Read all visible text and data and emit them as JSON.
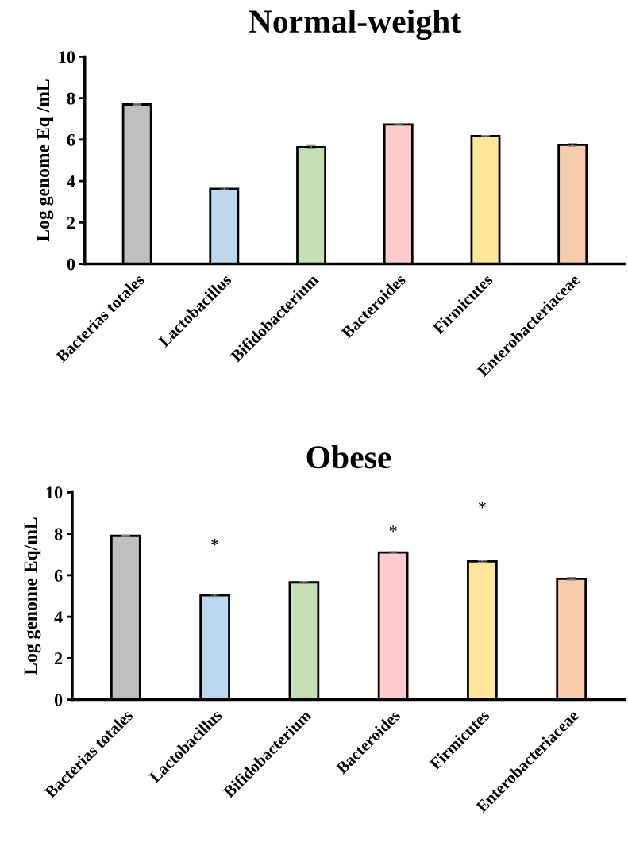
{
  "chart_data": [
    {
      "type": "bar",
      "title": "Normal-weight",
      "ylabel": "Log genome Eq /mL",
      "categories": [
        "Bacterias totales",
        "Lactobacillus",
        "Bifidobacterium",
        "Bacteroides",
        "Firmicutes",
        "Enterobacteriaceae"
      ],
      "values": [
        7.7,
        3.63,
        5.64,
        6.73,
        6.17,
        5.75
      ],
      "errors": [
        0.03,
        0.05,
        0.07,
        0.03,
        0.03,
        0.06
      ],
      "colors": [
        "#bfbfbf",
        "#bdd7ee",
        "#c5e0b4",
        "#ffcccc",
        "#ffe699",
        "#f8cbad"
      ],
      "ylim": [
        0,
        10
      ],
      "yticks": [
        0,
        2,
        4,
        6,
        8,
        10
      ],
      "grid": false
    },
    {
      "type": "bar",
      "title": "Obese",
      "ylabel": "Log genome Eq/mL",
      "categories": [
        "Bacterias totales",
        "Lactobacillus",
        "Bifidobacterium",
        "Bacteroides",
        "Firmicutes",
        "Enterobacteriaceae"
      ],
      "values": [
        7.9,
        5.03,
        5.66,
        7.1,
        6.67,
        5.83
      ],
      "errors": [
        0.03,
        0.05,
        0.04,
        0.04,
        0.04,
        0.06
      ],
      "colors": [
        "#bfbfbf",
        "#bdd7ee",
        "#c5e0b4",
        "#ffcccc",
        "#ffe699",
        "#f8cbad"
      ],
      "ylim": [
        0,
        10
      ],
      "yticks": [
        0,
        2,
        4,
        6,
        8,
        10
      ],
      "grid": false,
      "annotations": [
        "*",
        "*",
        "*"
      ]
    }
  ]
}
